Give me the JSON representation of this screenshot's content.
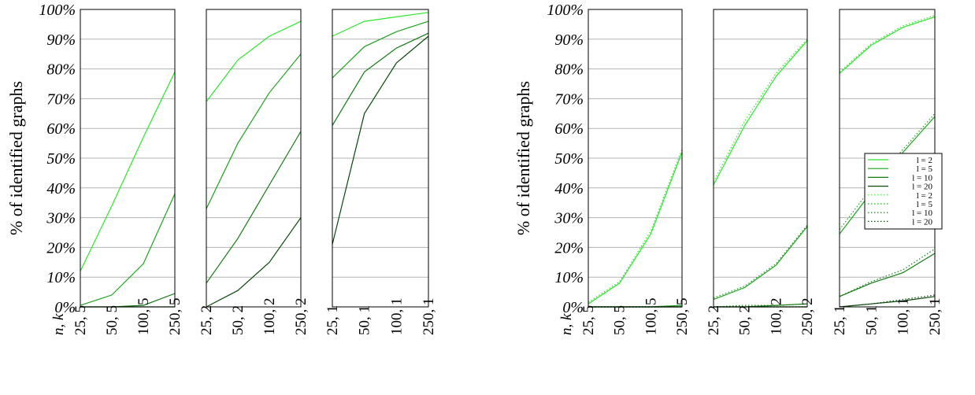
{
  "chart_data": [
    {
      "type": "line",
      "ylabel": "% of identified graphs",
      "y_ticks": [
        "0%",
        "10%",
        "20%",
        "30%",
        "40%",
        "50%",
        "60%",
        "70%",
        "80%",
        "90%",
        "100%"
      ],
      "ylim": [
        0,
        100
      ],
      "x_header": "n, k",
      "panels": [
        {
          "x": [
            "25, 5",
            "50, 5",
            "100, 5",
            "250, 5"
          ],
          "series": [
            {
              "name": "l = 2",
              "style": "solid",
              "color": "#2de62d",
              "values": [
                12,
                34,
                57,
                79
              ]
            },
            {
              "name": "l = 5",
              "style": "solid",
              "color": "#1ea21e",
              "values": [
                0.5,
                4,
                14.5,
                38
              ]
            },
            {
              "name": "l = 10",
              "style": "solid",
              "color": "#137a13",
              "values": [
                0,
                0,
                0.5,
                4.5
              ]
            },
            {
              "name": "l = 20",
              "style": "solid",
              "color": "#0a4a0a",
              "values": [
                0,
                0,
                0,
                0
              ]
            }
          ]
        },
        {
          "x": [
            "25, 2",
            "50, 2",
            "100, 2",
            "250, 2"
          ],
          "series": [
            {
              "name": "l = 2",
              "style": "solid",
              "color": "#2de62d",
              "values": [
                69,
                83,
                91,
                96
              ]
            },
            {
              "name": "l = 5",
              "style": "solid",
              "color": "#1ea21e",
              "values": [
                33,
                55,
                72,
                85
              ]
            },
            {
              "name": "l = 10",
              "style": "solid",
              "color": "#137a13",
              "values": [
                8,
                23,
                41,
                59
              ]
            },
            {
              "name": "l = 20",
              "style": "solid",
              "color": "#0a4a0a",
              "values": [
                0,
                5.5,
                15,
                30
              ]
            }
          ]
        },
        {
          "x": [
            "25, 1",
            "50, 1",
            "100, 1",
            "250, 1"
          ],
          "series": [
            {
              "name": "l = 2",
              "style": "solid",
              "color": "#2de62d",
              "values": [
                91,
                96,
                97.5,
                99
              ]
            },
            {
              "name": "l = 5",
              "style": "solid",
              "color": "#1ea21e",
              "values": [
                77,
                87.5,
                92.5,
                96
              ]
            },
            {
              "name": "l = 10",
              "style": "solid",
              "color": "#137a13",
              "values": [
                61,
                79,
                87,
                92
              ]
            },
            {
              "name": "l = 20",
              "style": "solid",
              "color": "#0a4a0a",
              "values": [
                21,
                65,
                82,
                91
              ]
            }
          ]
        }
      ]
    },
    {
      "type": "line",
      "ylabel": "% of identified graphs",
      "y_ticks": [
        "0%",
        "10%",
        "20%",
        "30%",
        "40%",
        "50%",
        "60%",
        "70%",
        "80%",
        "90%",
        "100%"
      ],
      "ylim": [
        0,
        100
      ],
      "x_header": "n, k",
      "legend_position": "right",
      "legend": [
        {
          "name": "l = 2",
          "style": "solid",
          "color": "#2de62d"
        },
        {
          "name": "l = 5",
          "style": "solid",
          "color": "#1ea21e"
        },
        {
          "name": "l = 10",
          "style": "solid",
          "color": "#137a13"
        },
        {
          "name": "l = 20",
          "style": "solid",
          "color": "#0a4a0a"
        },
        {
          "name": "l = 2",
          "style": "dotted",
          "color": "#2de62d"
        },
        {
          "name": "l = 5",
          "style": "dotted",
          "color": "#1ea21e"
        },
        {
          "name": "l = 10",
          "style": "dotted",
          "color": "#137a13"
        },
        {
          "name": "l = 20",
          "style": "dotted",
          "color": "#0a4a0a"
        }
      ],
      "panels": [
        {
          "x": [
            "25, 5",
            "50, 5",
            "100, 5",
            "250, 5"
          ],
          "series": [
            {
              "name": "l = 2",
              "style": "solid",
              "color": "#2de62d",
              "values": [
                1,
                8,
                24.5,
                52
              ]
            },
            {
              "name": "l = 5",
              "style": "solid",
              "color": "#1ea21e",
              "values": [
                0,
                0,
                0,
                0.5
              ]
            },
            {
              "name": "l = 10",
              "style": "solid",
              "color": "#137a13",
              "values": [
                0,
                0,
                0,
                0
              ]
            },
            {
              "name": "l = 20",
              "style": "solid",
              "color": "#0a4a0a",
              "values": [
                0,
                0,
                0,
                0
              ]
            },
            {
              "name": "l = 2",
              "style": "dotted",
              "color": "#2de62d",
              "values": [
                1.5,
                8.5,
                25.5,
                53
              ]
            },
            {
              "name": "l = 5",
              "style": "dotted",
              "color": "#1ea21e",
              "values": [
                0,
                0,
                0,
                0.5
              ]
            },
            {
              "name": "l = 10",
              "style": "dotted",
              "color": "#137a13",
              "values": [
                0,
                0,
                0,
                0
              ]
            },
            {
              "name": "l = 20",
              "style": "dotted",
              "color": "#0a4a0a",
              "values": [
                0,
                0,
                0,
                0
              ]
            }
          ]
        },
        {
          "x": [
            "25, 2",
            "50, 2",
            "100, 2",
            "250, 2"
          ],
          "series": [
            {
              "name": "l = 2",
              "style": "solid",
              "color": "#2de62d",
              "values": [
                41,
                61,
                77.5,
                89.5
              ]
            },
            {
              "name": "l = 5",
              "style": "solid",
              "color": "#1ea21e",
              "values": [
                2.5,
                6.5,
                14,
                27
              ]
            },
            {
              "name": "l = 10",
              "style": "solid",
              "color": "#137a13",
              "values": [
                0,
                0,
                0.5,
                1
              ]
            },
            {
              "name": "l = 20",
              "style": "solid",
              "color": "#0a4a0a",
              "values": [
                0,
                0,
                0,
                0
              ]
            },
            {
              "name": "l = 2",
              "style": "dotted",
              "color": "#2de62d",
              "values": [
                42,
                62.5,
                78.5,
                90
              ]
            },
            {
              "name": "l = 5",
              "style": "dotted",
              "color": "#1ea21e",
              "values": [
                3,
                7,
                14.5,
                27.5
              ]
            },
            {
              "name": "l = 10",
              "style": "dotted",
              "color": "#137a13",
              "values": [
                0,
                0.5,
                0.5,
                1
              ]
            },
            {
              "name": "l = 20",
              "style": "dotted",
              "color": "#0a4a0a",
              "values": [
                0,
                0,
                0,
                0
              ]
            }
          ]
        },
        {
          "x": [
            "25, 1",
            "50, 1",
            "100, 1",
            "250, 1"
          ],
          "series": [
            {
              "name": "l = 2",
              "style": "solid",
              "color": "#2de62d",
              "values": [
                78.5,
                88,
                94,
                97.5
              ]
            },
            {
              "name": "l = 5",
              "style": "solid",
              "color": "#1ea21e",
              "values": [
                24.5,
                38.5,
                52,
                64
              ]
            },
            {
              "name": "l = 10",
              "style": "solid",
              "color": "#137a13",
              "values": [
                3.5,
                8,
                11.5,
                18
              ]
            },
            {
              "name": "l = 20",
              "style": "solid",
              "color": "#0a4a0a",
              "values": [
                0,
                1,
                2,
                3.5
              ]
            },
            {
              "name": "l = 2",
              "style": "dotted",
              "color": "#2de62d",
              "values": [
                79,
                88.5,
                94.5,
                98
              ]
            },
            {
              "name": "l = 5",
              "style": "dotted",
              "color": "#1ea21e",
              "values": [
                26,
                40,
                53,
                65
              ]
            },
            {
              "name": "l = 10",
              "style": "dotted",
              "color": "#137a13",
              "values": [
                3.5,
                8.5,
                12.5,
                19.5
              ]
            },
            {
              "name": "l = 20",
              "style": "dotted",
              "color": "#0a4a0a",
              "values": [
                0,
                1,
                2.5,
                4
              ]
            }
          ]
        }
      ]
    }
  ]
}
